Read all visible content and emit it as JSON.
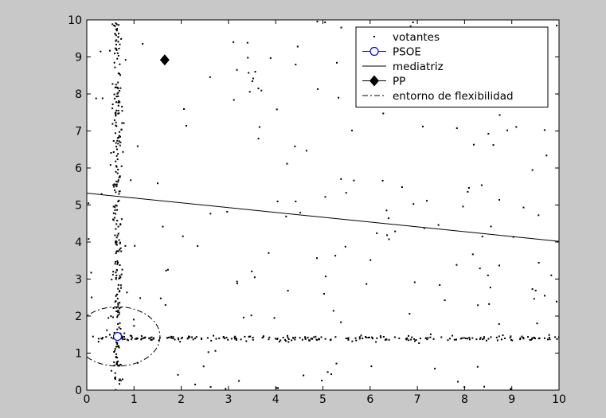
{
  "figure": {
    "background": "#c8c8c8",
    "axes_background": "#ffffff"
  },
  "chart_data": {
    "type": "scatter",
    "title": "",
    "xlabel": "",
    "ylabel": "",
    "xlim": [
      0,
      10
    ],
    "ylim": [
      0,
      10
    ],
    "x_ticks": [
      "0",
      "1",
      "2",
      "3",
      "4",
      "5",
      "6",
      "7",
      "8",
      "9",
      "10"
    ],
    "y_ticks": [
      "0",
      "1",
      "2",
      "3",
      "4",
      "5",
      "6",
      "7",
      "8",
      "9",
      "10"
    ],
    "grid": false,
    "legend_position": "top-right",
    "series": [
      {
        "name": "votantes",
        "kind": "dots",
        "color": "#000000",
        "clusters": [
          {
            "shape": "vertical-band",
            "x": 0.65,
            "spread": 0.05,
            "y_range": [
              0,
              10
            ],
            "count": 260
          },
          {
            "shape": "horizontal-band",
            "y": 1.4,
            "spread": 0.04,
            "x_range": [
              0,
              10
            ],
            "count": 240
          },
          {
            "shape": "uniform",
            "x_range": [
              0,
              10
            ],
            "y_range": [
              0,
              10
            ],
            "count": 190
          }
        ]
      },
      {
        "name": "PSOE",
        "kind": "marker",
        "marker": "circle-open",
        "color": "#0000ff",
        "points": [
          [
            0.65,
            1.45
          ]
        ]
      },
      {
        "name": "mediatriz",
        "kind": "line",
        "line": "solid",
        "color": "#000000",
        "points": [
          [
            0,
            5.32
          ],
          [
            10,
            4.02
          ]
        ]
      },
      {
        "name": "PP",
        "kind": "marker",
        "marker": "diamond-filled",
        "color": "#000000",
        "points": [
          [
            1.65,
            8.92
          ]
        ]
      },
      {
        "name": "entorno de flexibilidad",
        "kind": "ellipse",
        "line": "dashdot",
        "color": "#000000",
        "center": [
          0.65,
          1.45
        ],
        "radius": [
          0.9,
          0.8
        ]
      }
    ]
  }
}
